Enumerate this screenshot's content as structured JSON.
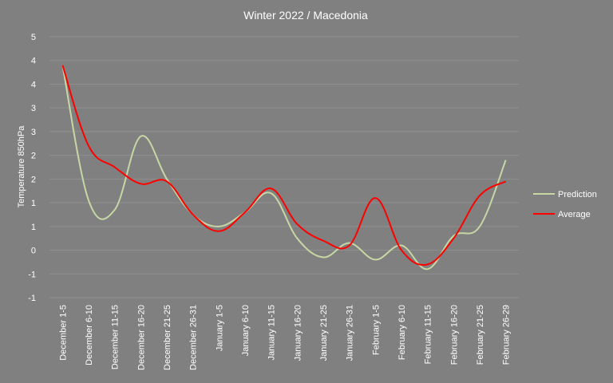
{
  "chart_data": {
    "type": "line",
    "title": "Winter 2022 / Macedonia",
    "ylabel": "Temperature  850hPa",
    "xlabel": "",
    "categories": [
      "December 1-5",
      "December 6-10",
      "December 11-15",
      "December 16-20",
      "December 21-25",
      "December 26-31",
      "January 1-5",
      "January 6-10",
      "January 11-15",
      "January 16-20",
      "January 21-25",
      "January 26-31",
      "February 1-5",
      "February 6-10",
      "February 11-15",
      "February 16-20",
      "February 21-25",
      "February 26-29"
    ],
    "y_tick_labels": [
      "-1",
      "-1",
      "0",
      "1",
      "1",
      "2",
      "2",
      "3",
      "3",
      "4",
      "4",
      "5"
    ],
    "ylim": [
      -1,
      4.5
    ],
    "grid": true,
    "legend_position": "right",
    "series": [
      {
        "name": "Prediction",
        "color": "#c6d7a4",
        "values": [
          3.9,
          1.05,
          0.85,
          2.4,
          1.5,
          0.75,
          0.5,
          0.8,
          1.2,
          0.25,
          -0.15,
          0.15,
          -0.2,
          0.1,
          -0.4,
          0.3,
          0.5,
          1.9
        ]
      },
      {
        "name": "Average",
        "color": "#ff0000",
        "values": [
          3.9,
          2.2,
          1.75,
          1.4,
          1.45,
          0.75,
          0.4,
          0.8,
          1.3,
          0.55,
          0.2,
          0.1,
          1.1,
          0.0,
          -0.3,
          0.25,
          1.15,
          1.45
        ]
      }
    ]
  }
}
